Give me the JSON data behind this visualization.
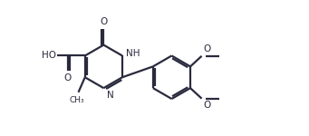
{
  "bg_color": "#ffffff",
  "line_color": "#2a2a3e",
  "line_width": 1.6,
  "font_size": 7.5,
  "fig_width": 3.41,
  "fig_height": 1.5,
  "dpi": 100,
  "xlim": [
    0,
    10
  ],
  "ylim": [
    0,
    4.5
  ]
}
